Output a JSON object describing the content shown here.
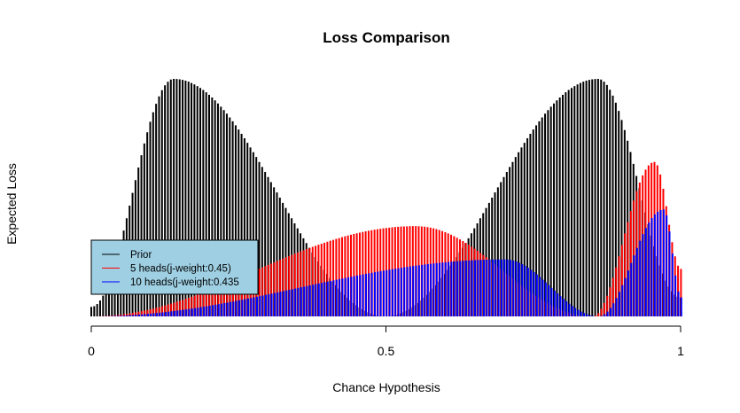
{
  "chart_data": {
    "type": "bar",
    "title": "Loss Comparison",
    "xlabel": "Chance Hypothesis",
    "ylabel": "Expected Loss",
    "xlim": [
      0,
      1
    ],
    "x_ticks": [
      "0",
      "0.5",
      "1"
    ],
    "x_tick_values": [
      0,
      0.5,
      1
    ],
    "ylim": [
      0,
      1
    ],
    "y_axis_visible": false,
    "grid": false,
    "legend_position": "left",
    "legend_background": "#9ecfe3",
    "series": [
      {
        "name": "Prior",
        "color": "#000000",
        "x_step": 0.005,
        "peaks": [
          {
            "x": 0.14,
            "y": 1.0
          },
          {
            "x": 0.86,
            "y": 1.0
          }
        ],
        "minima": [
          {
            "x": 0.0,
            "y": 0.04
          },
          {
            "x": 0.5,
            "y": 0.0
          },
          {
            "x": 1.0,
            "y": 0.08
          }
        ]
      },
      {
        "name": "5 heads(j-weight:0.45)",
        "color": "#ff0000",
        "x_step": 0.005,
        "peaks": [
          {
            "x": 0.55,
            "y": 0.38
          },
          {
            "x": 0.955,
            "y": 0.65
          }
        ],
        "minima": [
          {
            "x": 0.0,
            "y": 0.0
          },
          {
            "x": 0.85,
            "y": 0.0
          },
          {
            "x": 1.0,
            "y": 0.2
          }
        ]
      },
      {
        "name": "10 heads(j-weight:0.435",
        "color": "#0000ff",
        "x_step": 0.005,
        "peaks": [
          {
            "x": 0.7,
            "y": 0.24
          },
          {
            "x": 0.97,
            "y": 0.45
          }
        ],
        "minima": [
          {
            "x": 0.0,
            "y": 0.0
          },
          {
            "x": 0.86,
            "y": 0.0
          },
          {
            "x": 1.0,
            "y": 0.08
          }
        ]
      }
    ]
  }
}
